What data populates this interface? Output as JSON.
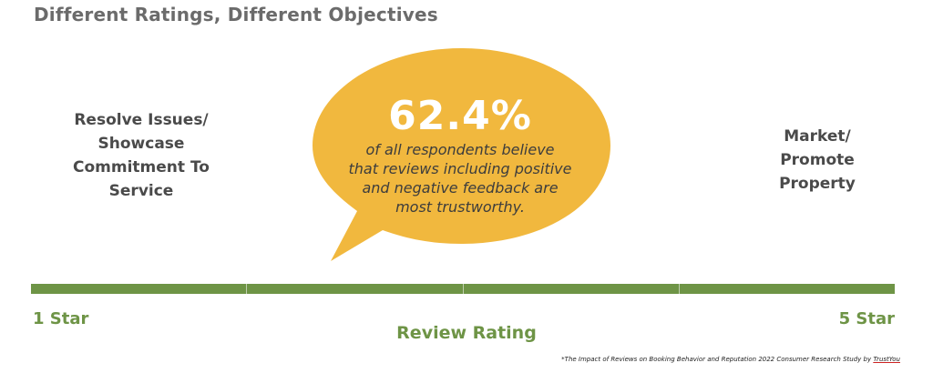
{
  "title": "Different Ratings, Different Objectives",
  "left_objective": [
    "Resolve Issues/",
    "Showcase",
    "Commitment To",
    "Service"
  ],
  "right_objective": [
    "Market/",
    "Promote",
    "Property"
  ],
  "bubble": {
    "stat": "62.4%",
    "description": [
      "of all respondents believe",
      "that reviews including positive",
      "and negative feedback are",
      "most trustworthy."
    ]
  },
  "scale": {
    "min_label": "1 Star",
    "max_label": "5 Star",
    "axis_title": "Review Rating",
    "segments": 4
  },
  "footnote": {
    "text": "*The Impact of Reviews on Booking Behavior and Reputation 2022 Consumer Research Study by ",
    "brand": "TrustYou"
  },
  "colors": {
    "bubble": "#f1b83e",
    "scale": "#6e9446",
    "title": "#6b6b6b"
  }
}
